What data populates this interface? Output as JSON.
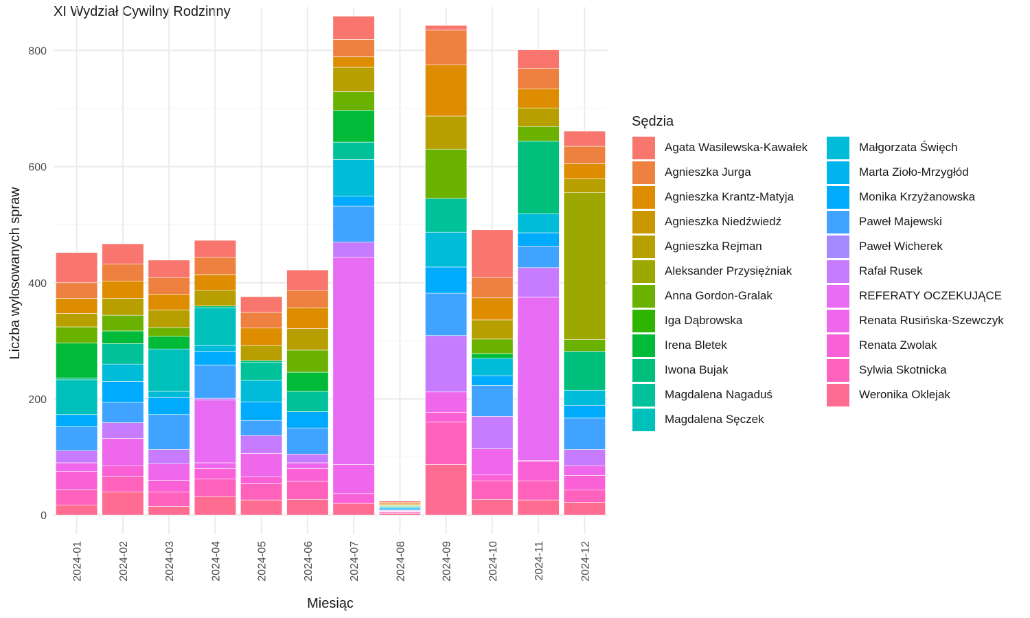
{
  "chart_data": {
    "type": "bar",
    "stacked": true,
    "title": "XI Wydział Cywilny Rodzinny",
    "xlabel": "Miesiąc",
    "ylabel": "Liczba wylosowanych spraw",
    "ylim": [
      -33,
      875
    ],
    "yticks": [
      0,
      200,
      400,
      600,
      800
    ],
    "grid": true,
    "legend_title": "Sędzia",
    "legend_position": "right",
    "categories": [
      "2024-01",
      "2024-02",
      "2024-03",
      "2024-04",
      "2024-05",
      "2024-06",
      "2024-07",
      "2024-08",
      "2024-09",
      "2024-10",
      "2024-11",
      "2024-12"
    ],
    "series": [
      {
        "name": "Weronika Oklejak",
        "color": "#FF6C91",
        "values": [
          17,
          40,
          15,
          32,
          26,
          27,
          20,
          3,
          87,
          27,
          26,
          22
        ]
      },
      {
        "name": "Sylwia Skotnicka",
        "color": "#FF62BC",
        "values": [
          27,
          27,
          25,
          30,
          28,
          31,
          0,
          2,
          73,
          32,
          33,
          21
        ]
      },
      {
        "name": "Renata Zwolak",
        "color": "#FB61D7",
        "values": [
          31,
          18,
          20,
          18,
          12,
          22,
          17,
          1,
          17,
          10,
          33,
          25
        ]
      },
      {
        "name": "Renata Rusińska-Szewczyk",
        "color": "#EF67EB",
        "values": [
          15,
          47,
          28,
          10,
          40,
          10,
          50,
          1,
          35,
          45,
          2,
          17
        ]
      },
      {
        "name": "REFERATY OCZEKUJĄCE",
        "color": "#E76BF3",
        "values": [
          0,
          0,
          0,
          108,
          0,
          0,
          357,
          0,
          0,
          0,
          281,
          0
        ]
      },
      {
        "name": "Rafał Rusek",
        "color": "#C77CFF",
        "values": [
          21,
          27,
          25,
          3,
          31,
          15,
          26,
          1,
          97,
          56,
          51,
          28
        ]
      },
      {
        "name": "Paweł Wicherek",
        "color": "#A58AFF",
        "values": [
          0,
          0,
          0,
          0,
          0,
          0,
          0,
          0,
          0,
          0,
          0,
          0
        ]
      },
      {
        "name": "Paweł Majewski",
        "color": "#3FA3FF",
        "values": [
          41,
          35,
          60,
          57,
          26,
          45,
          62,
          2,
          73,
          53,
          37,
          54
        ]
      },
      {
        "name": "Monika Krzyżanowska",
        "color": "#00ABFD",
        "values": [
          21,
          36,
          30,
          24,
          32,
          28,
          17,
          2,
          45,
          17,
          23,
          22
        ]
      },
      {
        "name": "Marta Zioło-Mrzygłód",
        "color": "#00B5EE",
        "values": [
          0,
          0,
          0,
          0,
          0,
          0,
          0,
          1,
          0,
          0,
          0,
          0
        ]
      },
      {
        "name": "Małgorzata Święch",
        "color": "#00BCD8",
        "values": [
          0,
          30,
          10,
          10,
          37,
          0,
          63,
          0,
          60,
          30,
          33,
          26
        ]
      },
      {
        "name": "Magdalena Sęczek",
        "color": "#00C0BB",
        "values": [
          60,
          0,
          73,
          65,
          0,
          0,
          0,
          0,
          0,
          0,
          0,
          0
        ]
      },
      {
        "name": "Magdalena Nagaduś",
        "color": "#00C19A",
        "values": [
          0,
          35,
          0,
          0,
          31,
          35,
          30,
          2,
          58,
          0,
          0,
          0
        ]
      },
      {
        "name": "Iwona Bujak",
        "color": "#00BF7D",
        "values": [
          3,
          0,
          0,
          3,
          3,
          0,
          0,
          0,
          0,
          0,
          125,
          67
        ]
      },
      {
        "name": "Irena Bletek",
        "color": "#00BA38",
        "values": [
          60,
          22,
          22,
          0,
          0,
          33,
          55,
          1,
          0,
          8,
          0,
          0
        ]
      },
      {
        "name": "Iga Dąbrowska",
        "color": "#2EB500",
        "values": [
          0,
          0,
          0,
          0,
          0,
          0,
          0,
          0,
          0,
          0,
          0,
          0
        ]
      },
      {
        "name": "Anna Gordon-Gralak",
        "color": "#6BB100",
        "values": [
          28,
          27,
          15,
          0,
          0,
          38,
          32,
          1,
          85,
          25,
          25,
          20
        ]
      },
      {
        "name": "Aleksander Przysiężniak",
        "color": "#9CA700",
        "values": [
          0,
          0,
          0,
          0,
          0,
          0,
          0,
          0,
          0,
          0,
          0,
          253
        ]
      },
      {
        "name": "Agnieszka Rejman",
        "color": "#B79F00",
        "values": [
          23,
          29,
          30,
          27,
          26,
          37,
          42,
          1,
          57,
          33,
          32,
          24
        ]
      },
      {
        "name": "Agnieszka Niedźwiedź",
        "color": "#C99800",
        "values": [
          0,
          0,
          0,
          0,
          0,
          0,
          0,
          0,
          0,
          0,
          0,
          0
        ]
      },
      {
        "name": "Agnieszka Krantz-Matyja",
        "color": "#DE8C00",
        "values": [
          26,
          30,
          27,
          27,
          30,
          36,
          18,
          2,
          88,
          38,
          33,
          26
        ]
      },
      {
        "name": "Agnieszka Jurga",
        "color": "#EE8040",
        "values": [
          27,
          29,
          29,
          30,
          27,
          30,
          30,
          2,
          60,
          35,
          35,
          30
        ]
      },
      {
        "name": "Agata Wasilewska-Kawałek",
        "color": "#F8766D",
        "values": [
          52,
          35,
          30,
          29,
          27,
          35,
          40,
          2,
          8,
          82,
          32,
          26
        ]
      }
    ]
  },
  "legend": {
    "items": [
      {
        "label": "Agata Wasilewska-Kawałek",
        "color": "#F8766D"
      },
      {
        "label": "Agnieszka Jurga",
        "color": "#EE8040"
      },
      {
        "label": "Agnieszka Krantz-Matyja",
        "color": "#DE8C00"
      },
      {
        "label": "Agnieszka Niedźwiedź",
        "color": "#C99800"
      },
      {
        "label": "Agnieszka Rejman",
        "color": "#B79F00"
      },
      {
        "label": "Aleksander Przysiężniak",
        "color": "#9CA700"
      },
      {
        "label": "Anna Gordon-Gralak",
        "color": "#6BB100"
      },
      {
        "label": "Iga Dąbrowska",
        "color": "#2EB500"
      },
      {
        "label": "Irena Bletek",
        "color": "#00BA38"
      },
      {
        "label": "Iwona Bujak",
        "color": "#00BF7D"
      },
      {
        "label": "Magdalena Nagaduś",
        "color": "#00C19A"
      },
      {
        "label": "Magdalena Sęczek",
        "color": "#00C0BB"
      },
      {
        "label": "Małgorzata Święch",
        "color": "#00BCD8"
      },
      {
        "label": "Marta Zioło-Mrzygłód",
        "color": "#00B5EE"
      },
      {
        "label": "Monika Krzyżanowska",
        "color": "#00ABFD"
      },
      {
        "label": "Paweł Majewski",
        "color": "#3FA3FF"
      },
      {
        "label": "Paweł Wicherek",
        "color": "#A58AFF"
      },
      {
        "label": "Rafał Rusek",
        "color": "#C77CFF"
      },
      {
        "label": "REFERATY OCZEKUJĄCE",
        "color": "#E76BF3"
      },
      {
        "label": "Renata Rusińska-Szewczyk",
        "color": "#EF67EB"
      },
      {
        "label": "Renata Zwolak",
        "color": "#FB61D7"
      },
      {
        "label": "Sylwia Skotnicka",
        "color": "#FF62BC"
      },
      {
        "label": "Weronika Oklejak",
        "color": "#FF6C91"
      }
    ]
  }
}
